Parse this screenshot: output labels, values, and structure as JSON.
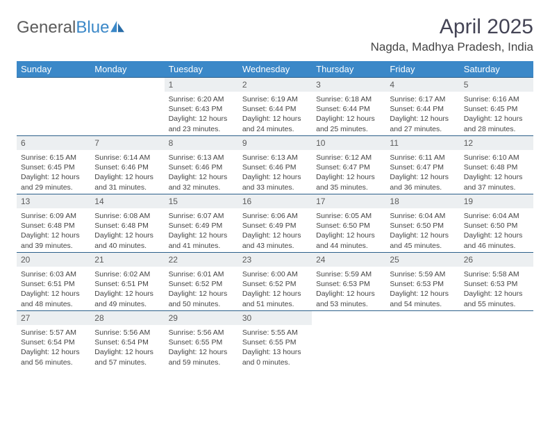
{
  "brand": {
    "part1": "General",
    "part2": "Blue"
  },
  "title": "April 2025",
  "location": "Nagda, Madhya Pradesh, India",
  "colors": {
    "header_bg": "#3b88c8",
    "header_text": "#ffffff",
    "daynum_bg": "#eceff1",
    "row_border": "#2b5f8a",
    "body_text": "#444444",
    "brand_gray": "#5b5b5b",
    "brand_blue": "#3b88c8"
  },
  "weekdays": [
    "Sunday",
    "Monday",
    "Tuesday",
    "Wednesday",
    "Thursday",
    "Friday",
    "Saturday"
  ],
  "weeks": [
    [
      {
        "empty": true
      },
      {
        "empty": true
      },
      {
        "n": "1",
        "sunrise": "6:20 AM",
        "sunset": "6:43 PM",
        "daylight": "12 hours and 23 minutes."
      },
      {
        "n": "2",
        "sunrise": "6:19 AM",
        "sunset": "6:44 PM",
        "daylight": "12 hours and 24 minutes."
      },
      {
        "n": "3",
        "sunrise": "6:18 AM",
        "sunset": "6:44 PM",
        "daylight": "12 hours and 25 minutes."
      },
      {
        "n": "4",
        "sunrise": "6:17 AM",
        "sunset": "6:44 PM",
        "daylight": "12 hours and 27 minutes."
      },
      {
        "n": "5",
        "sunrise": "6:16 AM",
        "sunset": "6:45 PM",
        "daylight": "12 hours and 28 minutes."
      }
    ],
    [
      {
        "n": "6",
        "sunrise": "6:15 AM",
        "sunset": "6:45 PM",
        "daylight": "12 hours and 29 minutes."
      },
      {
        "n": "7",
        "sunrise": "6:14 AM",
        "sunset": "6:46 PM",
        "daylight": "12 hours and 31 minutes."
      },
      {
        "n": "8",
        "sunrise": "6:13 AM",
        "sunset": "6:46 PM",
        "daylight": "12 hours and 32 minutes."
      },
      {
        "n": "9",
        "sunrise": "6:13 AM",
        "sunset": "6:46 PM",
        "daylight": "12 hours and 33 minutes."
      },
      {
        "n": "10",
        "sunrise": "6:12 AM",
        "sunset": "6:47 PM",
        "daylight": "12 hours and 35 minutes."
      },
      {
        "n": "11",
        "sunrise": "6:11 AM",
        "sunset": "6:47 PM",
        "daylight": "12 hours and 36 minutes."
      },
      {
        "n": "12",
        "sunrise": "6:10 AM",
        "sunset": "6:48 PM",
        "daylight": "12 hours and 37 minutes."
      }
    ],
    [
      {
        "n": "13",
        "sunrise": "6:09 AM",
        "sunset": "6:48 PM",
        "daylight": "12 hours and 39 minutes."
      },
      {
        "n": "14",
        "sunrise": "6:08 AM",
        "sunset": "6:48 PM",
        "daylight": "12 hours and 40 minutes."
      },
      {
        "n": "15",
        "sunrise": "6:07 AM",
        "sunset": "6:49 PM",
        "daylight": "12 hours and 41 minutes."
      },
      {
        "n": "16",
        "sunrise": "6:06 AM",
        "sunset": "6:49 PM",
        "daylight": "12 hours and 43 minutes."
      },
      {
        "n": "17",
        "sunrise": "6:05 AM",
        "sunset": "6:50 PM",
        "daylight": "12 hours and 44 minutes."
      },
      {
        "n": "18",
        "sunrise": "6:04 AM",
        "sunset": "6:50 PM",
        "daylight": "12 hours and 45 minutes."
      },
      {
        "n": "19",
        "sunrise": "6:04 AM",
        "sunset": "6:50 PM",
        "daylight": "12 hours and 46 minutes."
      }
    ],
    [
      {
        "n": "20",
        "sunrise": "6:03 AM",
        "sunset": "6:51 PM",
        "daylight": "12 hours and 48 minutes."
      },
      {
        "n": "21",
        "sunrise": "6:02 AM",
        "sunset": "6:51 PM",
        "daylight": "12 hours and 49 minutes."
      },
      {
        "n": "22",
        "sunrise": "6:01 AM",
        "sunset": "6:52 PM",
        "daylight": "12 hours and 50 minutes."
      },
      {
        "n": "23",
        "sunrise": "6:00 AM",
        "sunset": "6:52 PM",
        "daylight": "12 hours and 51 minutes."
      },
      {
        "n": "24",
        "sunrise": "5:59 AM",
        "sunset": "6:53 PM",
        "daylight": "12 hours and 53 minutes."
      },
      {
        "n": "25",
        "sunrise": "5:59 AM",
        "sunset": "6:53 PM",
        "daylight": "12 hours and 54 minutes."
      },
      {
        "n": "26",
        "sunrise": "5:58 AM",
        "sunset": "6:53 PM",
        "daylight": "12 hours and 55 minutes."
      }
    ],
    [
      {
        "n": "27",
        "sunrise": "5:57 AM",
        "sunset": "6:54 PM",
        "daylight": "12 hours and 56 minutes."
      },
      {
        "n": "28",
        "sunrise": "5:56 AM",
        "sunset": "6:54 PM",
        "daylight": "12 hours and 57 minutes."
      },
      {
        "n": "29",
        "sunrise": "5:56 AM",
        "sunset": "6:55 PM",
        "daylight": "12 hours and 59 minutes."
      },
      {
        "n": "30",
        "sunrise": "5:55 AM",
        "sunset": "6:55 PM",
        "daylight": "13 hours and 0 minutes."
      },
      {
        "empty": true
      },
      {
        "empty": true
      },
      {
        "empty": true
      }
    ]
  ],
  "labels": {
    "sunrise": "Sunrise:",
    "sunset": "Sunset:",
    "daylight": "Daylight:"
  }
}
